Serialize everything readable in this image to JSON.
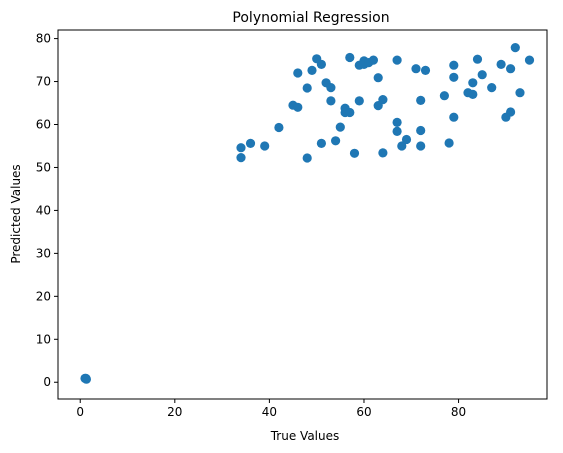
{
  "chart_data": {
    "type": "scatter",
    "title": "Polynomial Regression",
    "xlabel": "True Values",
    "ylabel": "Predicted Values",
    "xlim": [
      -4.7,
      98.7
    ],
    "ylim": [
      -3.9,
      82.0
    ],
    "xticks": [
      0,
      20,
      40,
      60,
      80
    ],
    "yticks": [
      0,
      10,
      20,
      30,
      40,
      50,
      60,
      70,
      80
    ],
    "grid": false,
    "color": "#1f77b4",
    "points": [
      {
        "x": 1,
        "y": 0.9
      },
      {
        "x": 1.2,
        "y": 0.9
      },
      {
        "x": 1.3,
        "y": 0.7
      },
      {
        "x": 34,
        "y": 52.3
      },
      {
        "x": 34,
        "y": 54.6
      },
      {
        "x": 36,
        "y": 55.6
      },
      {
        "x": 39,
        "y": 55.0
      },
      {
        "x": 42,
        "y": 59.3
      },
      {
        "x": 45,
        "y": 64.5
      },
      {
        "x": 46,
        "y": 64.0
      },
      {
        "x": 46,
        "y": 72.0
      },
      {
        "x": 48,
        "y": 52.2
      },
      {
        "x": 48,
        "y": 68.5
      },
      {
        "x": 49,
        "y": 72.6
      },
      {
        "x": 50,
        "y": 75.3
      },
      {
        "x": 51,
        "y": 74.0
      },
      {
        "x": 51,
        "y": 55.6
      },
      {
        "x": 52,
        "y": 69.7
      },
      {
        "x": 53,
        "y": 68.6
      },
      {
        "x": 53,
        "y": 65.5
      },
      {
        "x": 54,
        "y": 56.2
      },
      {
        "x": 55,
        "y": 59.4
      },
      {
        "x": 56,
        "y": 63.8
      },
      {
        "x": 56,
        "y": 62.8
      },
      {
        "x": 57,
        "y": 62.8
      },
      {
        "x": 57,
        "y": 75.6
      },
      {
        "x": 58,
        "y": 53.3
      },
      {
        "x": 59,
        "y": 65.5
      },
      {
        "x": 59,
        "y": 73.8
      },
      {
        "x": 60,
        "y": 74.8
      },
      {
        "x": 60,
        "y": 74.0
      },
      {
        "x": 61,
        "y": 74.4
      },
      {
        "x": 62,
        "y": 75.0
      },
      {
        "x": 63,
        "y": 70.9
      },
      {
        "x": 63,
        "y": 64.4
      },
      {
        "x": 64,
        "y": 65.8
      },
      {
        "x": 64,
        "y": 53.4
      },
      {
        "x": 67,
        "y": 75.0
      },
      {
        "x": 67,
        "y": 60.5
      },
      {
        "x": 67,
        "y": 58.4
      },
      {
        "x": 68,
        "y": 55.0
      },
      {
        "x": 69,
        "y": 56.5
      },
      {
        "x": 71,
        "y": 73.0
      },
      {
        "x": 72,
        "y": 65.6
      },
      {
        "x": 72,
        "y": 58.6
      },
      {
        "x": 72,
        "y": 55.0
      },
      {
        "x": 73,
        "y": 72.6
      },
      {
        "x": 77,
        "y": 66.7
      },
      {
        "x": 78,
        "y": 55.7
      },
      {
        "x": 79,
        "y": 71.0
      },
      {
        "x": 79,
        "y": 73.8
      },
      {
        "x": 79,
        "y": 61.7
      },
      {
        "x": 82,
        "y": 67.4
      },
      {
        "x": 83,
        "y": 69.7
      },
      {
        "x": 83,
        "y": 67.0
      },
      {
        "x": 84,
        "y": 75.2
      },
      {
        "x": 85,
        "y": 71.6
      },
      {
        "x": 87,
        "y": 68.6
      },
      {
        "x": 89,
        "y": 74.0
      },
      {
        "x": 90,
        "y": 61.7
      },
      {
        "x": 91,
        "y": 73.0
      },
      {
        "x": 91,
        "y": 62.9
      },
      {
        "x": 92,
        "y": 77.9
      },
      {
        "x": 93,
        "y": 67.4
      },
      {
        "x": 95,
        "y": 75.0
      }
    ]
  }
}
